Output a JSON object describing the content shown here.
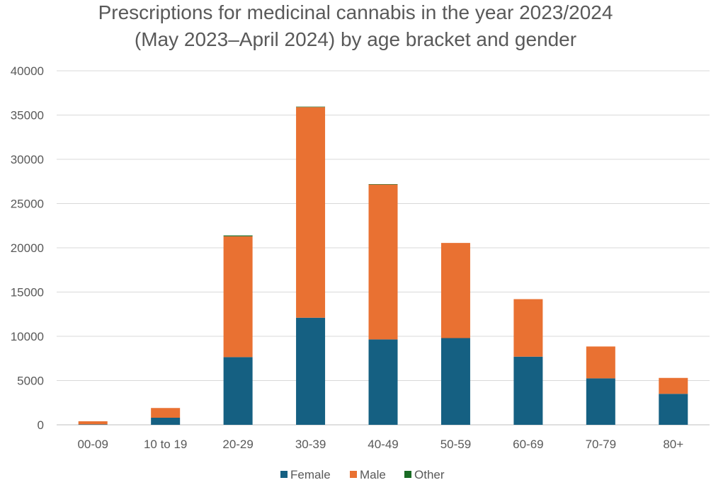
{
  "chart_data": {
    "type": "bar",
    "stacked": true,
    "title_lines": [
      "Prescriptions for medicinal cannabis in the year 2023/2024",
      "(May 2023–April 2024) by age bracket and gender"
    ],
    "categories": [
      "00-09",
      "10 to 19",
      "20-29",
      "30-39",
      "40-49",
      "50-59",
      "60-69",
      "70-79",
      "80+"
    ],
    "series": [
      {
        "name": "Female",
        "color": "#156082",
        "values": [
          50,
          800,
          7650,
          12100,
          9650,
          9800,
          7700,
          5250,
          3500
        ]
      },
      {
        "name": "Male",
        "color": "#E97132",
        "values": [
          350,
          1100,
          13650,
          23800,
          17500,
          10750,
          6500,
          3600,
          1800
        ]
      },
      {
        "name": "Other",
        "color": "#196B24",
        "values": [
          0,
          0,
          100,
          50,
          50,
          0,
          0,
          0,
          0
        ]
      }
    ],
    "y_ticks": [
      "0",
      "5000",
      "10000",
      "15000",
      "20000",
      "25000",
      "30000",
      "35000",
      "40000"
    ],
    "ylim": [
      0,
      40000
    ],
    "grid": true,
    "legend_position": "bottom"
  }
}
